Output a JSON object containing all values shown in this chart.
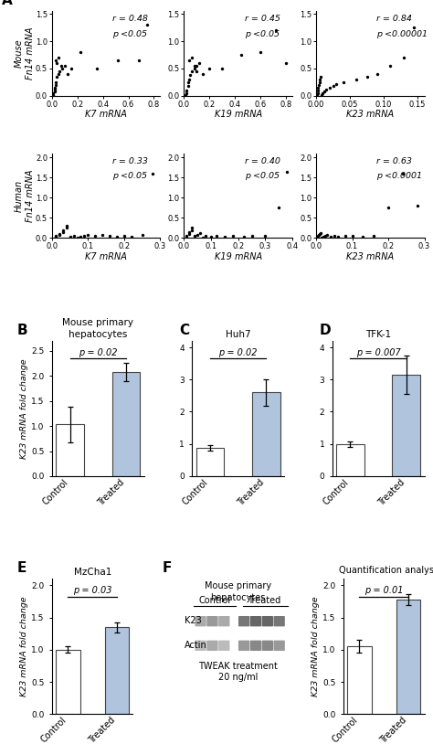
{
  "panel_A": {
    "mouse_scatter": [
      {
        "xlabel": "K7 mRNA",
        "r": "r = 0.48",
        "p": "p <0.05",
        "xlim": [
          0,
          0.85
        ],
        "xticks": [
          0.0,
          0.2,
          0.4,
          0.6,
          0.8
        ],
        "ylim": [
          0,
          1.55
        ],
        "yticks": [
          0.0,
          0.5,
          1.0,
          1.5
        ],
        "x": [
          0.01,
          0.01,
          0.02,
          0.02,
          0.02,
          0.03,
          0.03,
          0.04,
          0.05,
          0.06,
          0.08,
          0.1,
          0.04,
          0.03,
          0.05,
          0.07,
          0.12,
          0.15,
          0.22,
          0.35,
          0.52,
          0.68,
          0.75
        ],
        "y": [
          0.02,
          0.05,
          0.08,
          0.12,
          0.15,
          0.2,
          0.25,
          0.35,
          0.4,
          0.45,
          0.5,
          0.55,
          0.6,
          0.65,
          0.7,
          0.55,
          0.4,
          0.5,
          0.8,
          0.5,
          0.65,
          0.65,
          1.3
        ]
      },
      {
        "xlabel": "K19 mRNA",
        "r": "r = 0.45",
        "p": "p <0.05",
        "xlim": [
          0,
          0.85
        ],
        "xticks": [
          0.0,
          0.2,
          0.4,
          0.6,
          0.8
        ],
        "ylim": [
          0,
          1.55
        ],
        "yticks": [],
        "x": [
          0.01,
          0.02,
          0.02,
          0.03,
          0.03,
          0.04,
          0.05,
          0.06,
          0.08,
          0.1,
          0.12,
          0.04,
          0.06,
          0.08,
          0.1,
          0.15,
          0.2,
          0.3,
          0.45,
          0.6,
          0.72,
          0.8
        ],
        "y": [
          0.02,
          0.05,
          0.1,
          0.18,
          0.25,
          0.3,
          0.38,
          0.45,
          0.5,
          0.55,
          0.6,
          0.65,
          0.7,
          0.55,
          0.45,
          0.4,
          0.5,
          0.5,
          0.75,
          0.8,
          1.2,
          0.6
        ]
      },
      {
        "xlabel": "K23 mRNA",
        "r": "r = 0.84",
        "p": "p <0.00001",
        "xlim": [
          0,
          0.16
        ],
        "xticks": [
          0.0,
          0.05,
          0.1,
          0.15
        ],
        "ylim": [
          0,
          1.55
        ],
        "yticks": [],
        "x": [
          0.001,
          0.002,
          0.002,
          0.003,
          0.004,
          0.005,
          0.006,
          0.007,
          0.008,
          0.01,
          0.012,
          0.015,
          0.02,
          0.025,
          0.03,
          0.04,
          0.06,
          0.075,
          0.09,
          0.11,
          0.13,
          0.145
        ],
        "y": [
          0.01,
          0.05,
          0.1,
          0.15,
          0.2,
          0.25,
          0.3,
          0.35,
          0.02,
          0.05,
          0.08,
          0.12,
          0.15,
          0.18,
          0.22,
          0.25,
          0.3,
          0.35,
          0.4,
          0.55,
          0.7,
          1.25
        ]
      }
    ],
    "human_scatter": [
      {
        "xlabel": "K7 mRNA",
        "r": "r = 0.33",
        "p": "p <0.05",
        "xlim": [
          0,
          0.3
        ],
        "xticks": [
          0.0,
          0.1,
          0.2,
          0.3
        ],
        "ylim": [
          0,
          2.1
        ],
        "yticks": [
          0.0,
          0.5,
          1.0,
          1.5,
          2.0
        ],
        "x": [
          0.01,
          0.01,
          0.01,
          0.02,
          0.02,
          0.03,
          0.03,
          0.04,
          0.04,
          0.05,
          0.05,
          0.06,
          0.07,
          0.08,
          0.09,
          0.1,
          0.12,
          0.14,
          0.16,
          0.18,
          0.2,
          0.22,
          0.25,
          0.28
        ],
        "y": [
          0.01,
          0.03,
          0.05,
          0.08,
          0.1,
          0.15,
          0.2,
          0.25,
          0.3,
          0.01,
          0.03,
          0.05,
          0.02,
          0.04,
          0.06,
          0.08,
          0.05,
          0.08,
          0.06,
          0.04,
          0.05,
          0.03,
          0.08,
          1.6
        ]
      },
      {
        "xlabel": "K19 mRNA",
        "r": "r = 0.40",
        "p": "p <0.05",
        "xlim": [
          0,
          0.4
        ],
        "xticks": [
          0.0,
          0.1,
          0.2,
          0.3,
          0.4
        ],
        "ylim": [
          0,
          2.1
        ],
        "yticks": [],
        "x": [
          0.01,
          0.01,
          0.02,
          0.02,
          0.03,
          0.03,
          0.04,
          0.05,
          0.06,
          0.07,
          0.08,
          0.1,
          0.12,
          0.15,
          0.18,
          0.22,
          0.25,
          0.3,
          0.35,
          0.38
        ],
        "y": [
          0.01,
          0.05,
          0.1,
          0.15,
          0.2,
          0.25,
          0.05,
          0.08,
          0.12,
          0.02,
          0.05,
          0.03,
          0.06,
          0.04,
          0.05,
          0.03,
          0.06,
          0.05,
          0.75,
          1.65
        ]
      },
      {
        "xlabel": "K23 mRNA",
        "r": "r = 0.63",
        "p": "p <0.0001",
        "xlim": [
          0,
          0.3
        ],
        "xticks": [
          0.0,
          0.1,
          0.2,
          0.3
        ],
        "ylim": [
          0,
          2.1
        ],
        "yticks": [],
        "x": [
          0.002,
          0.003,
          0.005,
          0.007,
          0.01,
          0.012,
          0.015,
          0.02,
          0.025,
          0.03,
          0.04,
          0.05,
          0.06,
          0.08,
          0.1,
          0.13,
          0.16,
          0.2,
          0.24,
          0.28
        ],
        "y": [
          0.01,
          0.03,
          0.05,
          0.08,
          0.1,
          0.12,
          0.02,
          0.04,
          0.06,
          0.08,
          0.03,
          0.05,
          0.04,
          0.06,
          0.05,
          0.04,
          0.06,
          0.75,
          1.6,
          0.8
        ]
      }
    ],
    "mouse_ylabel": "Mouse\nFn14 mRNA",
    "human_ylabel": "Human\nFn14 mRNA"
  },
  "panel_B": {
    "title": "Mouse primary\nhepatocytes",
    "p_text": "p = 0.02",
    "categories": [
      "Control",
      "Treated"
    ],
    "values": [
      1.03,
      2.08
    ],
    "errors": [
      0.35,
      0.18
    ],
    "colors": [
      "white",
      "#b0c4de"
    ],
    "ylim": [
      0,
      2.7
    ],
    "yticks": [
      0.0,
      0.5,
      1.0,
      1.5,
      2.0,
      2.5
    ],
    "ylabel": "K23 mRNA fold change"
  },
  "panel_C": {
    "title": "Huh7",
    "p_text": "p = 0.02",
    "categories": [
      "Control",
      "Treated"
    ],
    "values": [
      0.88,
      2.6
    ],
    "errors": [
      0.08,
      0.42
    ],
    "colors": [
      "white",
      "#b0c4de"
    ],
    "ylim": [
      0,
      4.2
    ],
    "yticks": [
      0,
      1,
      2,
      3,
      4
    ],
    "ylabel": "K23 mRNA fold change"
  },
  "panel_D": {
    "title": "TFK-1",
    "p_text": "p = 0.007",
    "categories": [
      "Control",
      "Treated"
    ],
    "values": [
      1.0,
      3.15
    ],
    "errors": [
      0.08,
      0.6
    ],
    "colors": [
      "white",
      "#b0c4de"
    ],
    "ylim": [
      0,
      4.2
    ],
    "yticks": [
      0,
      1,
      2,
      3,
      4
    ],
    "ylabel": "K23 mRNA fold change"
  },
  "panel_E": {
    "title": "MzCha1",
    "p_text": "p = 0.03",
    "categories": [
      "Control",
      "Treated"
    ],
    "values": [
      1.0,
      1.35
    ],
    "errors": [
      0.05,
      0.08
    ],
    "colors": [
      "white",
      "#b0c4de"
    ],
    "ylim": [
      0,
      2.1
    ],
    "yticks": [
      0.0,
      0.5,
      1.0,
      1.5,
      2.0
    ],
    "ylabel": "K23 mRNA fold change"
  },
  "panel_F_quant": {
    "title": "Quantification analysis",
    "p_text": "p = 0.01",
    "categories": [
      "Control",
      "Treated"
    ],
    "values": [
      1.05,
      1.78
    ],
    "errors": [
      0.1,
      0.08
    ],
    "colors": [
      "white",
      "#b0c4de"
    ],
    "ylim": [
      0,
      2.1
    ],
    "yticks": [
      0.0,
      0.5,
      1.0,
      1.5,
      2.0
    ],
    "ylabel": "K23 mRNA fold change"
  },
  "panel_F_blot": {
    "title": "Mouse primary\nhepatocytes",
    "col_labels": [
      "Control",
      "Treated"
    ],
    "bands": [
      "K23",
      "Actin"
    ],
    "footer": "TWEAK treatment\n20 ng/ml"
  },
  "bar_width": 0.5,
  "bar_edge_color": "#444444"
}
